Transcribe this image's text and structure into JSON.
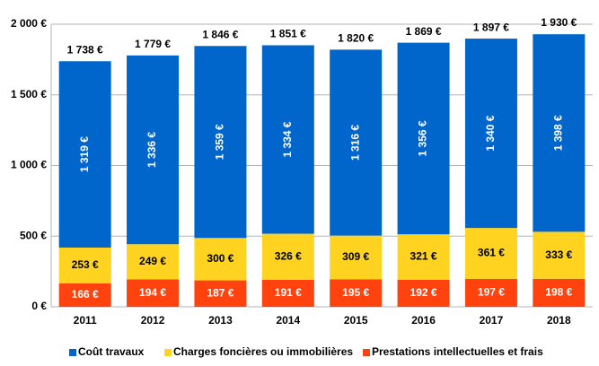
{
  "chart_data": {
    "type": "stacked_bar",
    "categories": [
      "2011",
      "2012",
      "2013",
      "2014",
      "2015",
      "2016",
      "2017",
      "2018"
    ],
    "series": [
      {
        "name": "Coût travaux",
        "color": "#0066cc",
        "label_color": "#ffffff",
        "values": [
          1319,
          1336,
          1359,
          1334,
          1316,
          1356,
          1340,
          1398
        ],
        "value_labels": [
          "1 319 €",
          "1 336 €",
          "1 359 €",
          "1 334 €",
          "1 316 €",
          "1 356 €",
          "1 340 €",
          "1 398 €"
        ]
      },
      {
        "name": "Charges foncières ou immobilières",
        "color": "#ffd320",
        "label_color": "#000000",
        "values": [
          253,
          249,
          300,
          326,
          309,
          321,
          361,
          333
        ],
        "value_labels": [
          "253 €",
          "249 €",
          "300 €",
          "326 €",
          "309 €",
          "321 €",
          "361 €",
          "333 €"
        ]
      },
      {
        "name": "Prestations intellectuelles et frais",
        "color": "#ff420e",
        "label_color": "#ffffff",
        "values": [
          166,
          194,
          187,
          191,
          195,
          192,
          197,
          198
        ],
        "value_labels": [
          "166 €",
          "194 €",
          "187 €",
          "191 €",
          "195 €",
          "192 €",
          "197 €",
          "198 €"
        ]
      }
    ],
    "totals": [
      1738,
      1779,
      1846,
      1851,
      1820,
      1869,
      1897,
      1930
    ],
    "total_labels": [
      "1 738 €",
      "1 779 €",
      "1 846 €",
      "1 851 €",
      "1 820 €",
      "1 869 €",
      "1 897 €",
      "1 930 €"
    ],
    "ylim": [
      0,
      2000
    ],
    "yticks": [
      {
        "value": 0,
        "label": "0 €"
      },
      {
        "value": 500,
        "label": "500 €"
      },
      {
        "value": 1000,
        "label": "1 000 €"
      },
      {
        "value": 1500,
        "label": "1 500 €"
      },
      {
        "value": 2000,
        "label": "2 000 €"
      }
    ],
    "grid": true,
    "legend": "bottom"
  }
}
